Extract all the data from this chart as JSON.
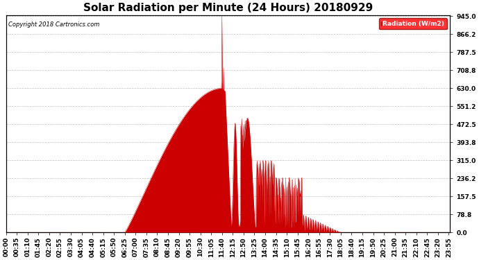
{
  "title": "Solar Radiation per Minute (24 Hours) 20180929",
  "copyright_text": "Copyright 2018 Cartronics.com",
  "legend_label": "Radiation (W/m2)",
  "yticks": [
    0.0,
    78.8,
    157.5,
    236.2,
    315.0,
    393.8,
    472.5,
    551.2,
    630.0,
    708.8,
    787.5,
    866.2,
    945.0
  ],
  "ymin": 0.0,
  "ymax": 945.0,
  "fill_color": "#cc0000",
  "line_color": "#cc0000",
  "background_color": "#ffffff",
  "grid_color": "#b0b0b0",
  "title_fontsize": 11,
  "tick_fontsize": 6.5,
  "minutes_per_day": 1440,
  "xtick_step": 35,
  "sunrise": 385,
  "sunset": 1085,
  "peak_minute": 700,
  "peak_val": 945.0,
  "base_peak_val": 630.0
}
